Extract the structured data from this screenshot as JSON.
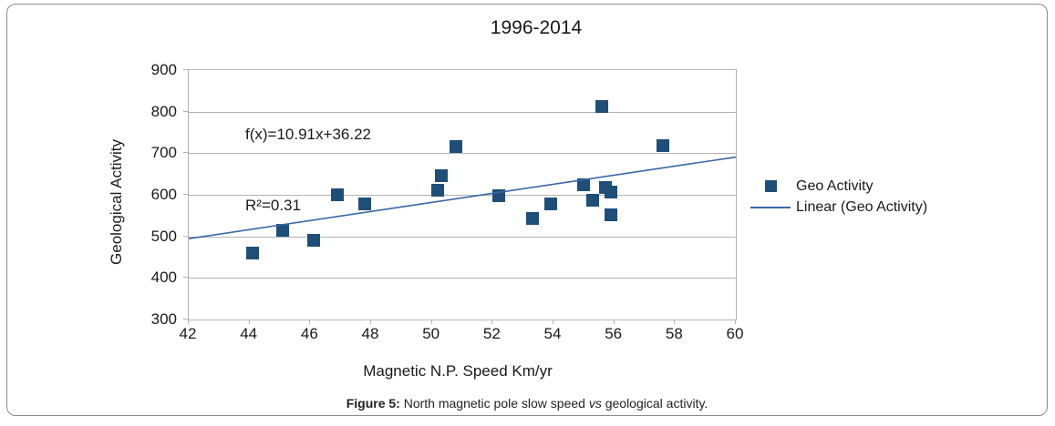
{
  "figure": {
    "caption": {
      "prefix": "Figure 5:",
      "body": " North magnetic pole slow speed ",
      "italic": "vs",
      "suffix": " geological activity."
    }
  },
  "colors": {
    "marker": "#1f4e79",
    "trendline": "#3a66a7",
    "grid": "#b3b3b3",
    "frame_border": "#8c8c8c",
    "text": "#1a1a1a"
  },
  "chart_data": {
    "type": "scatter",
    "title": "1996-2014",
    "xlabel": "Magnetic N.P. Speed Km/yr",
    "ylabel": "Geological Activity",
    "xlim": [
      42,
      60
    ],
    "ylim": [
      300,
      900
    ],
    "xticks": [
      42,
      44,
      46,
      48,
      50,
      52,
      54,
      56,
      58,
      60
    ],
    "yticks": [
      300,
      400,
      500,
      600,
      700,
      800,
      900
    ],
    "grid": true,
    "legend_position": "right",
    "annotation": [
      "f(x)=10.91x+36.22",
      "R²=0.31"
    ],
    "series": [
      {
        "name": "Geo Activity",
        "kind": "scatter",
        "marker": "square",
        "color": "#1f4e79",
        "points": [
          [
            44.1,
            460
          ],
          [
            45.1,
            515
          ],
          [
            46.1,
            490
          ],
          [
            46.9,
            600
          ],
          [
            47.8,
            578
          ],
          [
            50.2,
            612
          ],
          [
            50.3,
            645
          ],
          [
            50.8,
            717
          ],
          [
            52.2,
            598
          ],
          [
            53.3,
            543
          ],
          [
            53.9,
            578
          ],
          [
            55.0,
            625
          ],
          [
            55.3,
            586
          ],
          [
            55.6,
            813
          ],
          [
            55.7,
            617
          ],
          [
            55.9,
            606
          ],
          [
            55.9,
            551
          ],
          [
            57.6,
            718
          ]
        ]
      },
      {
        "name": "Linear (Geo Activity)",
        "kind": "trendline",
        "color": "#3a66a7",
        "slope": 10.91,
        "intercept": 36.22
      }
    ],
    "legend": [
      {
        "label": "Geo Activity",
        "swatch": "square"
      },
      {
        "label": "Linear (Geo Activity)",
        "swatch": "line"
      }
    ]
  }
}
